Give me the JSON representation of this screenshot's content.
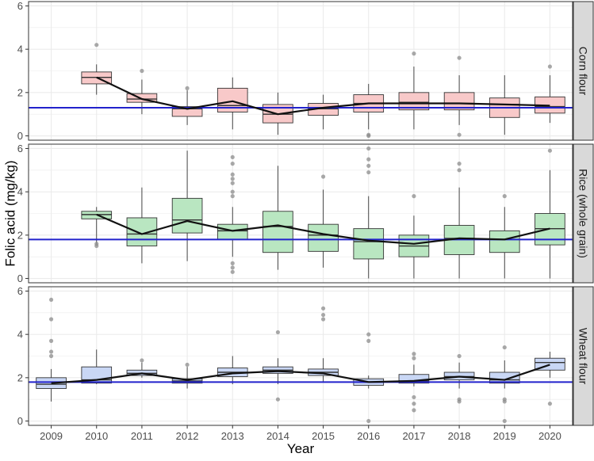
{
  "chart_data": {
    "type": "boxplot",
    "title": "",
    "xlabel": "Year",
    "ylabel": "Folic acid (mg/kg)",
    "ylim": [
      -0.2,
      6.2
    ],
    "yticks": [
      "0",
      "2",
      "4",
      "6"
    ],
    "categories": [
      "2009",
      "2010",
      "2011",
      "2012",
      "2013",
      "2014",
      "2015",
      "2016",
      "2017",
      "2018",
      "2019",
      "2020"
    ],
    "colors": {
      "axis": "#333333",
      "strip_bg": "#d9d9d9",
      "grid": "#ebebeb",
      "ref_line": "#2222cc",
      "mean_line": "#111111",
      "outlier": "#8c8c8c"
    },
    "panels": [
      {
        "name": "Corn flour",
        "fill": "#f8c9c9",
        "reference_line": 1.3,
        "boxes": [
          null,
          {
            "year": "2010",
            "low": 1.9,
            "q1": 2.4,
            "median": 2.7,
            "q3": 2.95,
            "high": 3.3,
            "outliers": [
              4.2
            ]
          },
          {
            "year": "2011",
            "low": 1.0,
            "q1": 1.55,
            "median": 1.7,
            "q3": 1.95,
            "high": 2.6,
            "outliers": [
              3.0
            ]
          },
          {
            "year": "2012",
            "low": 0.5,
            "q1": 0.9,
            "median": 1.25,
            "q3": 1.35,
            "high": 2.1,
            "outliers": [
              2.2
            ]
          },
          {
            "year": "2013",
            "low": 0.3,
            "q1": 1.1,
            "median": 1.4,
            "q3": 2.2,
            "high": 2.7,
            "outliers": []
          },
          {
            "year": "2014",
            "low": 0.05,
            "q1": 0.6,
            "median": 1.0,
            "q3": 1.45,
            "high": 2.0,
            "outliers": []
          },
          {
            "year": "2015",
            "low": 0.3,
            "q1": 0.95,
            "median": 1.25,
            "q3": 1.5,
            "high": 1.9,
            "outliers": []
          },
          {
            "year": "2016",
            "low": 0.3,
            "q1": 1.1,
            "median": 1.5,
            "q3": 1.9,
            "high": 2.4,
            "outliers": [
              0.05,
              0.0
            ]
          },
          {
            "year": "2017",
            "low": 0.3,
            "q1": 1.2,
            "median": 1.55,
            "q3": 2.0,
            "high": 3.2,
            "outliers": [
              3.8
            ]
          },
          {
            "year": "2018",
            "low": 0.5,
            "q1": 1.2,
            "median": 1.5,
            "q3": 2.0,
            "high": 2.8,
            "outliers": [
              3.6,
              0.05
            ]
          },
          {
            "year": "2019",
            "low": 0.05,
            "q1": 0.85,
            "median": 1.45,
            "q3": 1.75,
            "high": 2.8,
            "outliers": []
          },
          {
            "year": "2020",
            "low": 0.6,
            "q1": 1.05,
            "median": 1.35,
            "q3": 1.8,
            "high": 2.8,
            "outliers": [
              3.2
            ]
          }
        ],
        "mean_line": [
          null,
          2.7,
          1.7,
          1.25,
          1.6,
          1.0,
          1.3,
          1.5,
          1.5,
          1.5,
          1.45,
          1.4
        ]
      },
      {
        "name": "Rice (whole grain)",
        "fill": "#b9e6c1",
        "reference_line": 1.8,
        "boxes": [
          null,
          {
            "year": "2010",
            "low": 1.6,
            "q1": 2.75,
            "median": 2.95,
            "q3": 3.1,
            "high": 3.3,
            "outliers": [
              1.5,
              1.6
            ]
          },
          {
            "year": "2011",
            "low": 0.7,
            "q1": 1.5,
            "median": 2.05,
            "q3": 2.8,
            "high": 4.2,
            "outliers": []
          },
          {
            "year": "2012",
            "low": 0.8,
            "q1": 2.1,
            "median": 2.7,
            "q3": 3.7,
            "high": 5.9,
            "outliers": []
          },
          {
            "year": "2013",
            "low": 1.0,
            "q1": 1.8,
            "median": 2.2,
            "q3": 2.5,
            "high": 3.3,
            "outliers": [
              5.6,
              5.3,
              4.8,
              4.6,
              4.4,
              4.0,
              3.8,
              0.7,
              0.5,
              0.3
            ]
          },
          {
            "year": "2014",
            "low": 0.4,
            "q1": 1.2,
            "median": 2.4,
            "q3": 3.1,
            "high": 5.2,
            "outliers": []
          },
          {
            "year": "2015",
            "low": 0.5,
            "q1": 1.25,
            "median": 2.0,
            "q3": 2.5,
            "high": 4.1,
            "outliers": [
              4.7
            ]
          },
          {
            "year": "2016",
            "low": 0.0,
            "q1": 0.9,
            "median": 1.7,
            "q3": 2.3,
            "high": 3.8,
            "outliers": [
              6.0,
              5.5,
              5.2,
              4.9
            ]
          },
          {
            "year": "2017",
            "low": 0.0,
            "q1": 1.0,
            "median": 1.5,
            "q3": 2.0,
            "high": 2.9,
            "outliers": [
              3.8
            ]
          },
          {
            "year": "2018",
            "low": 0.0,
            "q1": 1.1,
            "median": 1.85,
            "q3": 2.45,
            "high": 4.2,
            "outliers": [
              5.3,
              5.0
            ]
          },
          {
            "year": "2019",
            "low": 0.0,
            "q1": 1.2,
            "median": 1.8,
            "q3": 2.2,
            "high": 3.3,
            "outliers": [
              3.8
            ]
          },
          {
            "year": "2020",
            "low": 0.0,
            "q1": 1.55,
            "median": 2.3,
            "q3": 3.0,
            "high": 5.0,
            "outliers": [
              5.9
            ]
          }
        ],
        "mean_line": [
          null,
          2.95,
          2.05,
          2.65,
          2.2,
          2.45,
          2.05,
          1.75,
          1.6,
          1.85,
          1.8,
          2.3
        ]
      },
      {
        "name": "Wheat flour",
        "fill": "#c9d7f5",
        "reference_line": 1.8,
        "boxes": [
          {
            "year": "2009",
            "low": 0.9,
            "q1": 1.5,
            "median": 1.7,
            "q3": 2.0,
            "high": 2.4,
            "outliers": [
              5.6,
              4.7,
              3.7,
              3.2,
              3.0
            ]
          },
          {
            "year": "2010",
            "low": 1.7,
            "q1": 1.75,
            "median": 1.9,
            "q3": 2.5,
            "high": 3.3,
            "outliers": []
          },
          {
            "year": "2011",
            "low": 2.0,
            "q1": 2.1,
            "median": 2.2,
            "q3": 2.35,
            "high": 2.7,
            "outliers": [
              2.8
            ]
          },
          {
            "year": "2012",
            "low": 1.5,
            "q1": 1.75,
            "median": 1.85,
            "q3": 1.95,
            "high": 2.5,
            "outliers": [
              2.6
            ]
          },
          {
            "year": "2013",
            "low": 1.7,
            "q1": 2.05,
            "median": 2.25,
            "q3": 2.45,
            "high": 3.0,
            "outliers": []
          },
          {
            "year": "2014",
            "low": 1.7,
            "q1": 2.2,
            "median": 2.35,
            "q3": 2.5,
            "high": 2.9,
            "outliers": [
              4.1,
              1.0
            ]
          },
          {
            "year": "2015",
            "low": 1.8,
            "q1": 2.1,
            "median": 2.25,
            "q3": 2.4,
            "high": 2.9,
            "outliers": [
              5.2,
              4.9,
              4.7
            ]
          },
          {
            "year": "2016",
            "low": 1.5,
            "q1": 1.65,
            "median": 1.8,
            "q3": 1.95,
            "high": 2.1,
            "outliers": [
              4.0,
              3.7,
              0.0
            ]
          },
          {
            "year": "2017",
            "low": 1.6,
            "q1": 1.75,
            "median": 1.85,
            "q3": 2.15,
            "high": 2.6,
            "outliers": [
              3.1,
              2.9,
              1.1,
              0.8,
              0.5
            ]
          },
          {
            "year": "2018",
            "low": 1.5,
            "q1": 1.9,
            "median": 2.05,
            "q3": 2.25,
            "high": 2.7,
            "outliers": [
              3.0,
              1.0,
              0.9
            ]
          },
          {
            "year": "2019",
            "low": 1.5,
            "q1": 1.75,
            "median": 1.9,
            "q3": 2.25,
            "high": 2.8,
            "outliers": [
              3.4,
              1.0,
              0.9,
              0.0
            ]
          },
          {
            "year": "2020",
            "low": 2.0,
            "q1": 2.35,
            "median": 2.7,
            "q3": 2.9,
            "high": 3.2,
            "outliers": [
              0.8
            ]
          }
        ],
        "mean_line": [
          1.75,
          1.9,
          2.2,
          1.9,
          2.2,
          2.3,
          2.2,
          1.8,
          1.85,
          2.05,
          1.9,
          2.6
        ]
      }
    ]
  }
}
